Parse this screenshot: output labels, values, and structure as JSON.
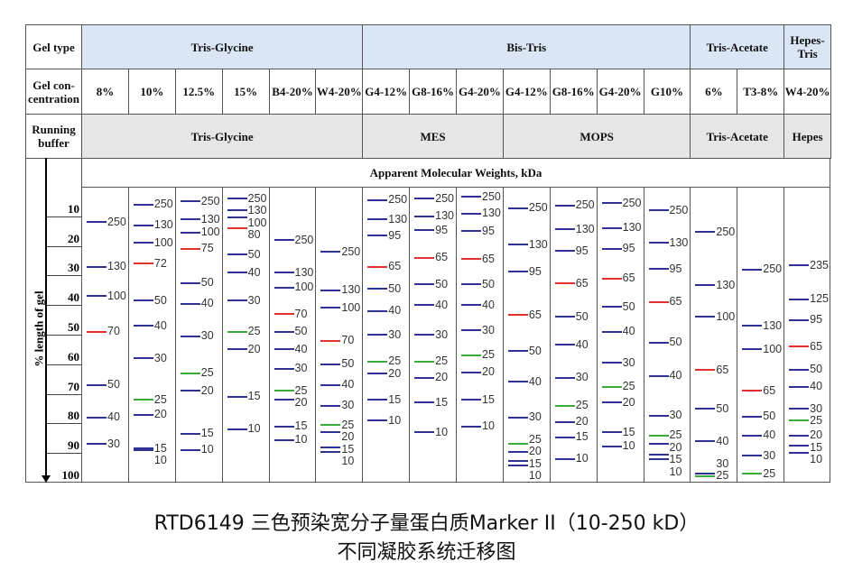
{
  "header": {
    "gel_type_label": "Gel type",
    "gel_conc_label": "Gel con-\ncentration",
    "running_buffer_label": "Running buffer",
    "gel_types": [
      {
        "label": "Tris-Glycine",
        "span": 6
      },
      {
        "label": "Bis-Tris",
        "span": 7
      },
      {
        "label": "Tris-Acetate",
        "span": 2
      },
      {
        "label": "Hepes-Tris",
        "span": 1
      }
    ],
    "concentrations": [
      "8%",
      "10%",
      "12.5%",
      "15%",
      "B4-20%",
      "W4-20%",
      "G4-12%",
      "G8-16%",
      "G4-20%",
      "G4-12%",
      "G8-16%",
      "G4-20%",
      "G10%",
      "6%",
      "T3-8%",
      "W4-20%"
    ],
    "buffers": [
      {
        "label": "Tris-Glycine",
        "span": 6
      },
      {
        "label": "MES",
        "span": 3
      },
      {
        "label": "MOPS",
        "span": 4
      },
      {
        "label": "Tris-Acetate",
        "span": 2
      },
      {
        "label": "Hepes",
        "span": 1
      }
    ],
    "mw_title": "Apparent Molecular Weights, kDa"
  },
  "axis": {
    "label": "% length of gel",
    "ticks": [
      10,
      20,
      30,
      40,
      50,
      60,
      70,
      80,
      90,
      100
    ]
  },
  "colors": {
    "b": "#2e3192",
    "r": "#e03030",
    "g": "#3aaa3a"
  },
  "lanes": [
    [
      [
        "250",
        12,
        "b"
      ],
      [
        "130",
        27,
        "b"
      ],
      [
        "100",
        37,
        "b"
      ],
      [
        "70",
        49,
        "r"
      ],
      [
        "50",
        67,
        "b"
      ],
      [
        "40",
        78,
        "b"
      ],
      [
        "30",
        87,
        "b"
      ]
    ],
    [
      [
        "250",
        6,
        "b"
      ],
      [
        "130",
        13,
        "b"
      ],
      [
        "100",
        19,
        "b"
      ],
      [
        "72",
        26,
        "r"
      ],
      [
        "50",
        38.5,
        "b"
      ],
      [
        "40",
        47,
        "b"
      ],
      [
        "30",
        58,
        "b"
      ],
      [
        "25",
        72,
        "g"
      ],
      [
        "20",
        77,
        "b"
      ],
      [
        "15",
        88.5,
        "b"
      ],
      [
        "10",
        89,
        "b"
      ]
    ],
    [
      [
        "250",
        5,
        "b"
      ],
      [
        "130",
        11,
        "b"
      ],
      [
        "100",
        15.5,
        "b"
      ],
      [
        "75",
        21,
        "r"
      ],
      [
        "50",
        32.5,
        "b"
      ],
      [
        "40",
        39.5,
        "b"
      ],
      [
        "30",
        50.5,
        "b"
      ],
      [
        "25",
        63,
        "g"
      ],
      [
        "20",
        69,
        "b"
      ],
      [
        "15",
        83.5,
        "b"
      ],
      [
        "10",
        89,
        "b"
      ]
    ],
    [
      [
        "250",
        4,
        "b"
      ],
      [
        "130",
        8,
        "b"
      ],
      [
        "100",
        10.5,
        "b"
      ],
      [
        "80",
        14,
        "r"
      ],
      [
        "50",
        23,
        "b"
      ],
      [
        "40",
        29,
        "b"
      ],
      [
        "30",
        38.5,
        "b"
      ],
      [
        "25",
        49,
        "g"
      ],
      [
        "20",
        55,
        "b"
      ],
      [
        "15",
        71,
        "b"
      ],
      [
        "10",
        82,
        "b"
      ]
    ],
    [
      [
        "250",
        18,
        "b"
      ],
      [
        "130",
        29,
        "b"
      ],
      [
        "100",
        34,
        "b"
      ],
      [
        "70",
        43,
        "r"
      ],
      [
        "50",
        49,
        "b"
      ],
      [
        "40",
        55,
        "b"
      ],
      [
        "30",
        61.5,
        "b"
      ],
      [
        "25",
        69,
        "g"
      ],
      [
        "20",
        72,
        "b"
      ],
      [
        "15",
        81,
        "b"
      ],
      [
        "10",
        85.6,
        "b"
      ]
    ],
    [
      [
        "250",
        22,
        "b"
      ],
      [
        "130",
        35,
        "b"
      ],
      [
        "100",
        41,
        "b"
      ],
      [
        "70",
        52,
        "r"
      ],
      [
        "50",
        60,
        "b"
      ],
      [
        "40",
        67,
        "b"
      ],
      [
        "30",
        74,
        "b"
      ],
      [
        "25",
        80.5,
        "g"
      ],
      [
        "20",
        83,
        "b"
      ],
      [
        "15",
        88,
        "b"
      ],
      [
        "10",
        89.6,
        "b"
      ]
    ],
    [
      [
        "250",
        4.5,
        "b"
      ],
      [
        "130",
        11,
        "b"
      ],
      [
        "95",
        16.5,
        "b"
      ],
      [
        "65",
        27,
        "r"
      ],
      [
        "50",
        34.5,
        "b"
      ],
      [
        "40",
        42,
        "b"
      ],
      [
        "30",
        50,
        "b"
      ],
      [
        "25",
        59,
        "g"
      ],
      [
        "20",
        63,
        "b"
      ],
      [
        "15",
        72,
        "b"
      ],
      [
        "10",
        79,
        "b"
      ]
    ],
    [
      [
        "250",
        4,
        "b"
      ],
      [
        "130",
        10,
        "b"
      ],
      [
        "95",
        14.7,
        "b"
      ],
      [
        "65",
        24,
        "r"
      ],
      [
        "50",
        33,
        "b"
      ],
      [
        "40",
        40,
        "b"
      ],
      [
        "30",
        50,
        "b"
      ],
      [
        "25",
        59,
        "g"
      ],
      [
        "20",
        64.5,
        "b"
      ],
      [
        "15",
        73,
        "b"
      ],
      [
        "10",
        83,
        "b"
      ]
    ],
    [
      [
        "250",
        3.4,
        "b"
      ],
      [
        "130",
        9,
        "b"
      ],
      [
        "95",
        15,
        "b"
      ],
      [
        "65",
        24.5,
        "r"
      ],
      [
        "50",
        33,
        "b"
      ],
      [
        "40",
        40,
        "b"
      ],
      [
        "30",
        48.6,
        "b"
      ],
      [
        "25",
        57,
        "g"
      ],
      [
        "20",
        62.7,
        "b"
      ],
      [
        "15",
        72,
        "b"
      ],
      [
        "10",
        81,
        "b"
      ]
    ],
    [
      [
        "250",
        7.3,
        "b"
      ],
      [
        "130",
        19.6,
        "b"
      ],
      [
        "95",
        28.7,
        "b"
      ],
      [
        "65",
        43.4,
        "r"
      ],
      [
        "50",
        55.6,
        "b"
      ],
      [
        "40",
        66,
        "b"
      ],
      [
        "30",
        78,
        "b"
      ],
      [
        "25",
        86.8,
        "g"
      ],
      [
        "20",
        89.6,
        "b"
      ],
      [
        "15",
        92.7,
        "b"
      ],
      [
        "10",
        94.2,
        "b"
      ]
    ],
    [
      [
        "250",
        6.4,
        "b"
      ],
      [
        "130",
        14.4,
        "b"
      ],
      [
        "95",
        21.7,
        "b"
      ],
      [
        "65",
        32.7,
        "r"
      ],
      [
        "50",
        44,
        "b"
      ],
      [
        "40",
        53.5,
        "b"
      ],
      [
        "30",
        64.5,
        "b"
      ],
      [
        "25",
        74,
        "g"
      ],
      [
        "20",
        79.5,
        "b"
      ],
      [
        "15",
        84.7,
        "b"
      ],
      [
        "10",
        92,
        "b"
      ]
    ],
    [
      [
        "250",
        5.5,
        "b"
      ],
      [
        "130",
        14,
        "b"
      ],
      [
        "95",
        21,
        "b"
      ],
      [
        "65",
        31,
        "r"
      ],
      [
        "50",
        40.7,
        "b"
      ],
      [
        "40",
        49,
        "b"
      ],
      [
        "30",
        59.6,
        "b"
      ],
      [
        "25",
        67.6,
        "g"
      ],
      [
        "20",
        73,
        "b"
      ],
      [
        "15",
        83,
        "b"
      ],
      [
        "10",
        87.8,
        "b"
      ]
    ],
    [
      [
        "250",
        8,
        "b"
      ],
      [
        "130",
        19,
        "b"
      ],
      [
        "95",
        27.8,
        "b"
      ],
      [
        "65",
        39,
        "r"
      ],
      [
        "50",
        52.6,
        "b"
      ],
      [
        "40",
        64,
        "b"
      ],
      [
        "30",
        77.4,
        "b"
      ],
      [
        "25",
        84,
        "g"
      ],
      [
        "20",
        87,
        "b"
      ],
      [
        "15",
        90.5,
        "b"
      ],
      [
        "10",
        92,
        "b"
      ]
    ],
    [
      [
        "250",
        15.3,
        "b"
      ],
      [
        "130",
        33.3,
        "b"
      ],
      [
        "100",
        44,
        "b"
      ],
      [
        "65",
        62,
        "r"
      ],
      [
        "50",
        75,
        "b"
      ],
      [
        "40",
        86,
        "b"
      ],
      [
        "30",
        97,
        "b"
      ],
      [
        "25",
        98,
        "g"
      ]
    ],
    [
      [
        "250",
        28,
        "b"
      ],
      [
        "130",
        47,
        "b"
      ],
      [
        "100",
        55,
        "b"
      ],
      [
        "65",
        69,
        "r"
      ],
      [
        "50",
        77.7,
        "b"
      ],
      [
        "40",
        84,
        "b"
      ],
      [
        "30",
        91,
        "b"
      ],
      [
        "25",
        97,
        "g"
      ]
    ],
    [
      [
        "235",
        26.6,
        "b"
      ],
      [
        "125",
        38,
        "b"
      ],
      [
        "95",
        45,
        "b"
      ],
      [
        "65",
        54,
        "r"
      ],
      [
        "50",
        61.8,
        "b"
      ],
      [
        "40",
        67.6,
        "b"
      ],
      [
        "30",
        75,
        "b"
      ],
      [
        "25",
        79,
        "g"
      ],
      [
        "20",
        84,
        "b"
      ],
      [
        "15",
        87.5,
        "b"
      ],
      [
        "10",
        90,
        "b"
      ]
    ]
  ],
  "caption": {
    "line1": "RTD6149 三色预染宽分子量蛋白质Marker II（10-250 kD）",
    "line2": "不同凝胶系统迁移图"
  }
}
